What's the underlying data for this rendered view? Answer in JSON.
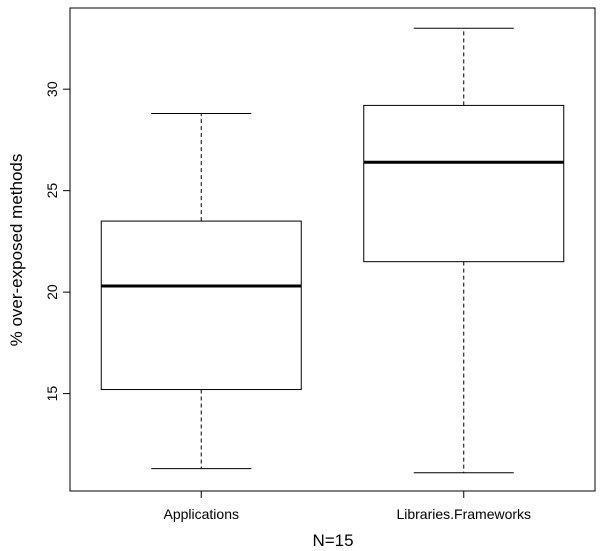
{
  "chart_data": {
    "type": "box",
    "title": "",
    "xlabel": "N=15",
    "ylabel": "% over-exposed methods",
    "ylim": [
      10.2,
      34.0
    ],
    "yticks": [
      15,
      20,
      25,
      30
    ],
    "grid": false,
    "series": [
      {
        "name": "Applications",
        "whisker_low": 11.3,
        "q1": 15.2,
        "median": 20.3,
        "q3": 23.5,
        "whisker_high": 28.8
      },
      {
        "name": "Libraries.Frameworks",
        "whisker_low": 11.1,
        "q1": 21.5,
        "median": 26.4,
        "q3": 29.2,
        "whisker_high": 33.0
      }
    ]
  }
}
